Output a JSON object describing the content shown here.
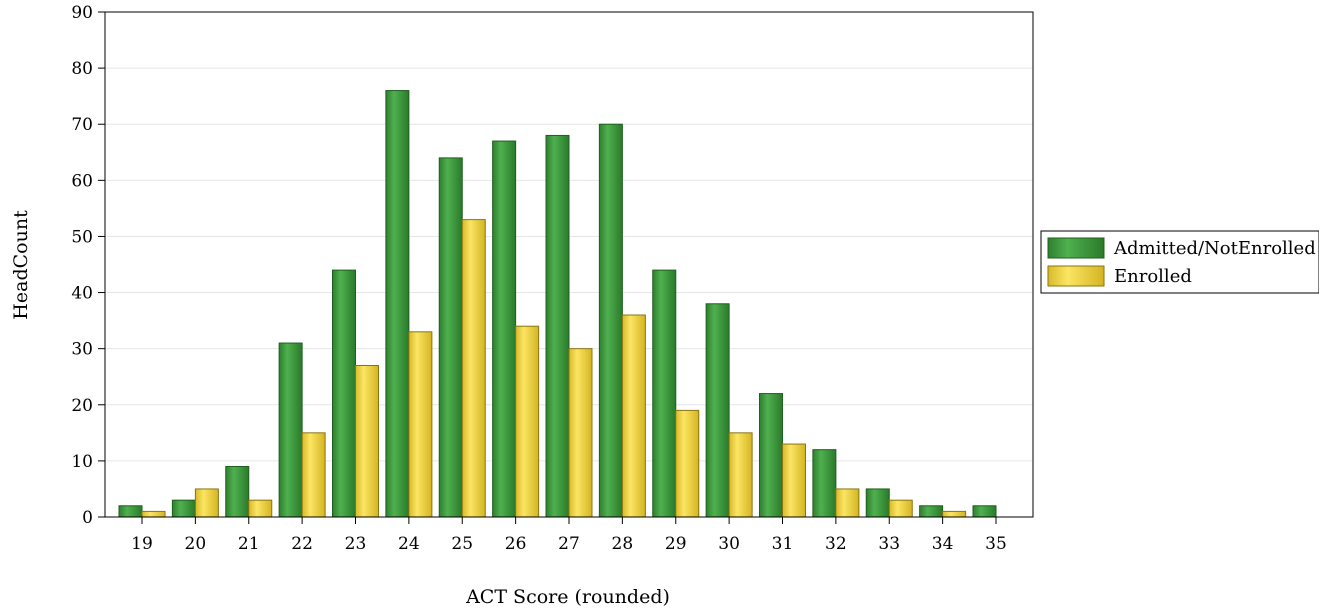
{
  "chart_data": {
    "type": "bar",
    "xlabel": "ACT Score (rounded)",
    "ylabel": "HeadCount",
    "ylim": [
      0,
      90
    ],
    "yticks": [
      0,
      10,
      20,
      30,
      40,
      50,
      60,
      70,
      80,
      90
    ],
    "grid": true,
    "legend_position": "right",
    "categories": [
      "19",
      "20",
      "21",
      "22",
      "23",
      "24",
      "25",
      "26",
      "27",
      "28",
      "29",
      "30",
      "31",
      "32",
      "33",
      "34",
      "35"
    ],
    "series": [
      {
        "name": "Admitted/NotEnrolled",
        "color": "#3e9b3e",
        "values": [
          2,
          3,
          9,
          31,
          44,
          76,
          64,
          67,
          68,
          70,
          44,
          38,
          22,
          12,
          5,
          2,
          2
        ]
      },
      {
        "name": "Enrolled",
        "color": "#f0d43a",
        "values": [
          1,
          5,
          3,
          15,
          27,
          33,
          53,
          34,
          30,
          36,
          19,
          15,
          13,
          5,
          3,
          1,
          null
        ]
      }
    ]
  }
}
